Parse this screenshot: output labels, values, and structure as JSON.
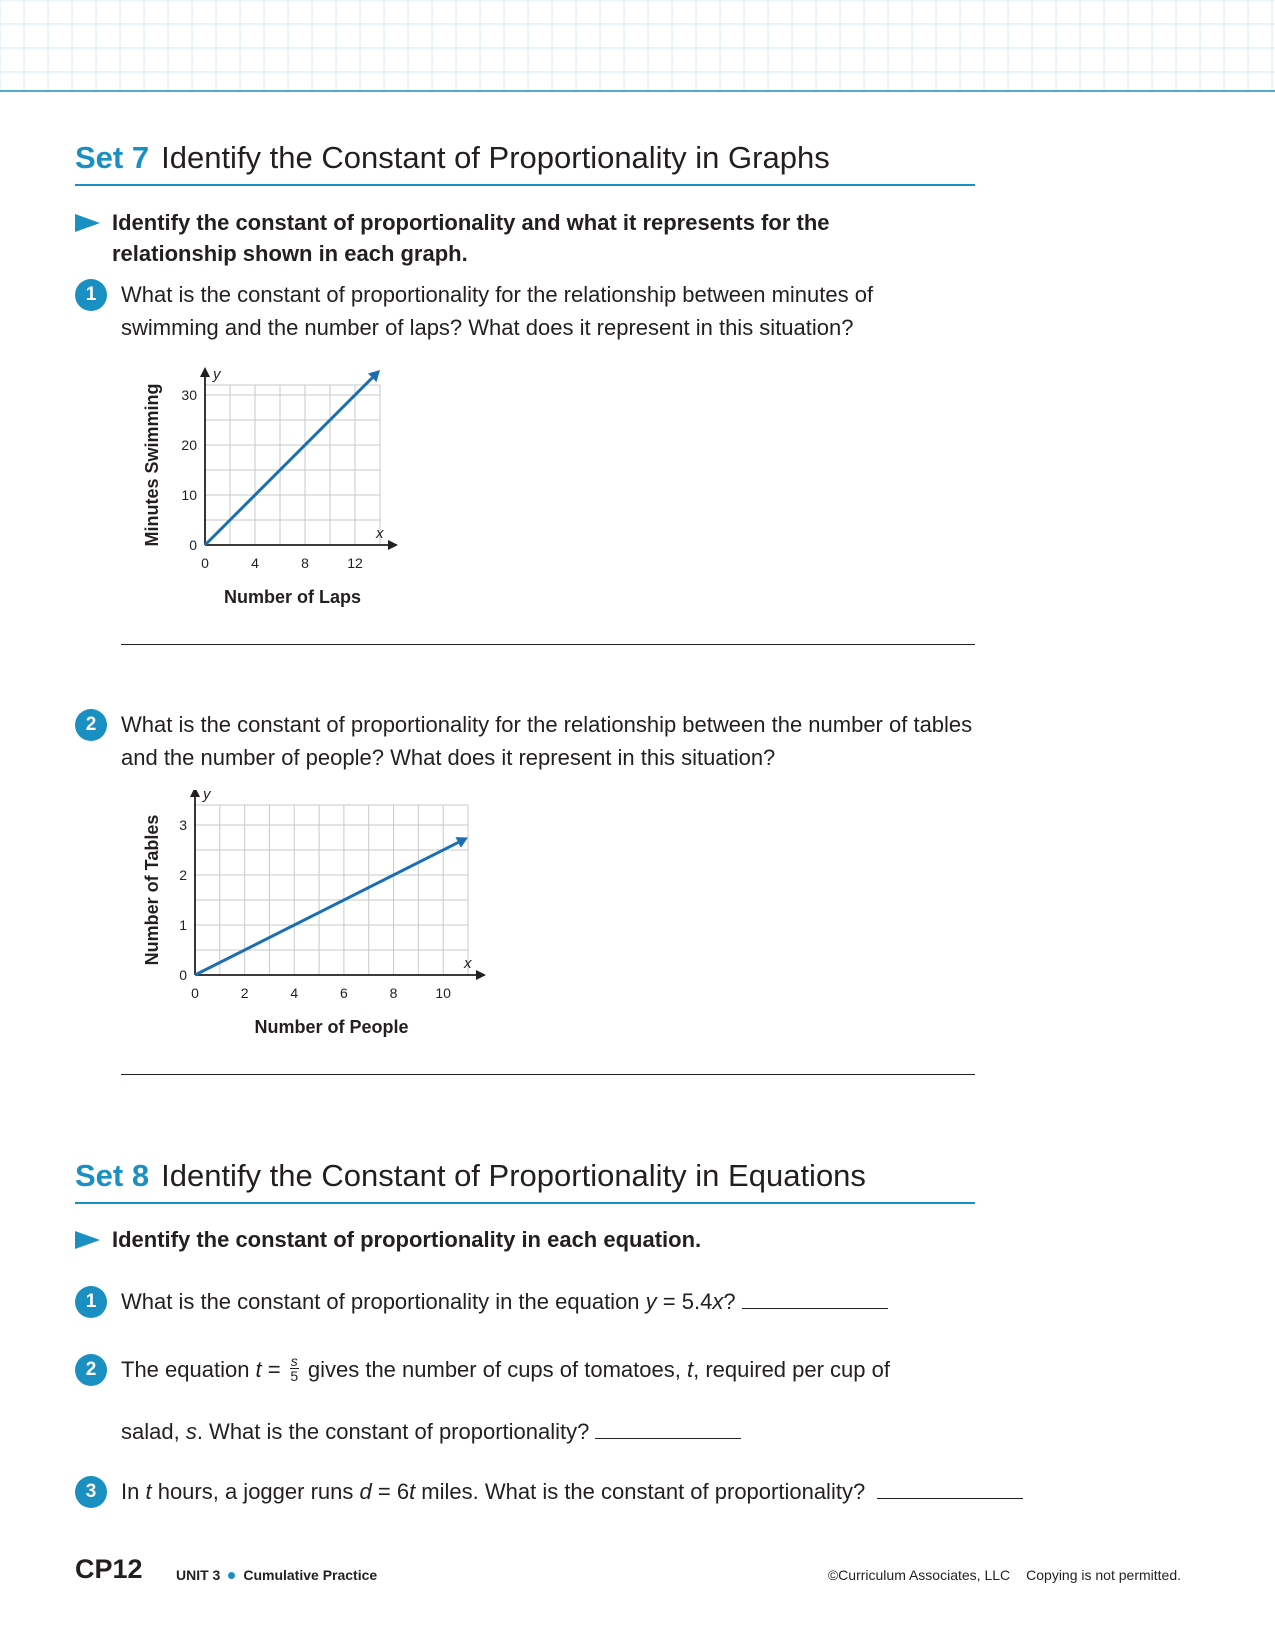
{
  "colors": {
    "accent": "#1a8fc2",
    "text": "#231f20",
    "grid": "#c9c9c9",
    "line": "#1a6fb3"
  },
  "set7": {
    "number": "Set 7",
    "title": "Identify the Constant of Proportionality in Graphs",
    "instruction": "Identify the constant of proportionality and what it represents for the relationship shown in each graph.",
    "questions": [
      {
        "num": "1",
        "text": "What is the constant of proportionality for the relationship between minutes of swimming and the number of laps? What does it represent in this situation?"
      },
      {
        "num": "2",
        "text": "What is the constant of proportionality for the relationship between the number of tables and the number of people? What does it represent in this situation?"
      }
    ]
  },
  "chart_data": [
    {
      "type": "line",
      "xlabel": "Number of Laps",
      "ylabel": "Minutes Swimming",
      "x_axis_letter": "x",
      "y_axis_letter": "y",
      "xlim": [
        0,
        14
      ],
      "ylim": [
        0,
        32
      ],
      "x_ticks": [
        0,
        4,
        8,
        12
      ],
      "y_ticks": [
        0,
        10,
        20,
        30
      ],
      "grid": true,
      "series": [
        {
          "x": [
            0,
            14
          ],
          "y": [
            0,
            35
          ]
        }
      ]
    },
    {
      "type": "line",
      "xlabel": "Number of People",
      "ylabel": "Number of Tables",
      "x_axis_letter": "x",
      "y_axis_letter": "y",
      "xlim": [
        0,
        11
      ],
      "ylim": [
        0,
        3.4
      ],
      "x_ticks": [
        0,
        2,
        4,
        6,
        8,
        10
      ],
      "y_ticks": [
        0,
        1,
        2,
        3
      ],
      "grid": true,
      "series": [
        {
          "x": [
            0,
            11
          ],
          "y": [
            0,
            2.75
          ]
        }
      ]
    }
  ],
  "set8": {
    "number": "Set 8",
    "title": "Identify the Constant of Proportionality in Equations",
    "instruction": "Identify the constant of proportionality in each equation.",
    "q1": {
      "num": "1",
      "text_a": "What is the constant of proportionality in the equation ",
      "var_y": "y",
      "eq": " = 5.4",
      "var_x": "x",
      "end": "?"
    },
    "q2": {
      "num": "2",
      "text_a": "The equation ",
      "var_t": "t",
      "eq": " = ",
      "frac_num": "s",
      "frac_den": "5",
      "text_b": " gives the number of cups of tomatoes, ",
      "var_t2": "t",
      "text_c": ", required per cup of",
      "line2_a": "salad, ",
      "var_s": "s",
      "line2_b": ". What is the constant of proportionality?"
    },
    "q3": {
      "num": "3",
      "text_a": "In ",
      "var_t": "t",
      "text_b": " hours, a jogger runs ",
      "var_d": "d",
      "eq": " = 6",
      "var_t2": "t",
      "text_c": " miles. What is the constant of proportionality?"
    }
  },
  "footer": {
    "code": "CP12",
    "unit": "UNIT 3",
    "section": "Cumulative Practice",
    "copyright": "©Curriculum Associates, LLC",
    "notice": "Copying is not permitted."
  }
}
